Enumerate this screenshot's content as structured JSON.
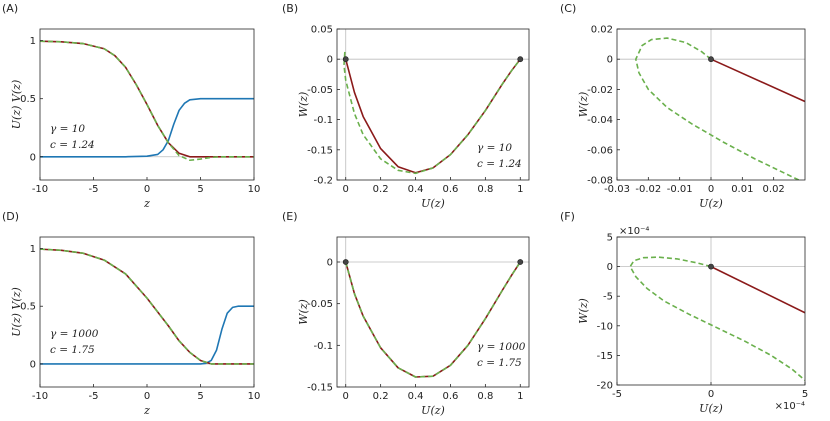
{
  "chart_data": [
    {
      "panel": "(A)",
      "type": "line",
      "xlabel": "z",
      "ylabel": "U(z)   V(z)",
      "xlim": [
        -10,
        10
      ],
      "ylim": [
        -0.2,
        1.1
      ],
      "xticks": [
        -10,
        -5,
        0,
        5,
        10
      ],
      "xtick_labels": [
        "-10",
        "-5",
        "0",
        "5",
        "10"
      ],
      "yticks": [
        0,
        0.5,
        1
      ],
      "ytick_labels": [
        "0",
        "0.5",
        "1"
      ],
      "annotations": [
        "γ = 10",
        "c = 1.24"
      ],
      "series": [
        {
          "color": "#1f77b4",
          "dash": false,
          "x": [
            -10,
            -5,
            -2,
            0,
            1,
            1.5,
            2,
            2.5,
            3,
            3.5,
            4,
            5,
            6,
            10
          ],
          "y": [
            0,
            0,
            0,
            0.005,
            0.02,
            0.06,
            0.14,
            0.28,
            0.4,
            0.46,
            0.49,
            0.5,
            0.5,
            0.5
          ]
        },
        {
          "color": "#8b1a1a",
          "dash": false,
          "x": [
            -10,
            -8,
            -6,
            -4,
            -3,
            -2,
            -1,
            0,
            1,
            2,
            3,
            4,
            5,
            6,
            10
          ],
          "y": [
            0.995,
            0.99,
            0.975,
            0.93,
            0.87,
            0.77,
            0.62,
            0.45,
            0.27,
            0.12,
            0.03,
            0.0,
            0.0,
            0.0,
            0.0
          ]
        },
        {
          "color": "#6ab04c",
          "dash": true,
          "x": [
            -10,
            -8,
            -6,
            -4,
            -3,
            -2,
            -1,
            0,
            1,
            2,
            3,
            4,
            5,
            6,
            7,
            10
          ],
          "y": [
            0.995,
            0.99,
            0.975,
            0.93,
            0.87,
            0.77,
            0.62,
            0.45,
            0.27,
            0.12,
            0.01,
            -0.03,
            -0.02,
            -0.005,
            0.0,
            0.0
          ]
        }
      ]
    },
    {
      "panel": "(B)",
      "type": "line",
      "xlabel": "U(z)",
      "ylabel": "W(z)",
      "xlim": [
        -0.05,
        1.05
      ],
      "ylim": [
        -0.2,
        0.05
      ],
      "xticks": [
        0,
        0.2,
        0.4,
        0.6,
        0.8,
        1
      ],
      "xtick_labels": [
        "0",
        "0.2",
        "0.4",
        "0.6",
        "0.8",
        "1"
      ],
      "yticks": [
        0.05,
        0,
        -0.05,
        -0.1,
        -0.15,
        -0.2
      ],
      "ytick_labels": [
        "0.05",
        "0",
        "-0.05",
        "-0.1",
        "-0.15",
        "-0.2"
      ],
      "annotations": [
        "γ = 10",
        "c = 1.24"
      ],
      "points": [
        [
          0,
          0
        ],
        [
          1,
          0
        ]
      ],
      "series": [
        {
          "color": "#8b1a1a",
          "dash": false,
          "x": [
            0,
            0.05,
            0.1,
            0.2,
            0.3,
            0.4,
            0.5,
            0.6,
            0.7,
            0.8,
            0.9,
            0.95,
            1
          ],
          "y": [
            0,
            -0.055,
            -0.095,
            -0.148,
            -0.178,
            -0.188,
            -0.18,
            -0.158,
            -0.125,
            -0.085,
            -0.04,
            -0.019,
            0
          ]
        },
        {
          "color": "#6ab04c",
          "dash": true,
          "x": [
            -0.005,
            -0.01,
            0,
            0.05,
            0.1,
            0.2,
            0.3,
            0.4,
            0.5,
            0.6,
            0.7,
            0.8,
            0.9,
            0.95,
            1
          ],
          "y": [
            0.012,
            -0.01,
            -0.035,
            -0.09,
            -0.125,
            -0.165,
            -0.184,
            -0.189,
            -0.18,
            -0.158,
            -0.125,
            -0.085,
            -0.04,
            -0.019,
            0
          ]
        }
      ]
    },
    {
      "panel": "(C)",
      "type": "line",
      "xlabel": "U(z)",
      "ylabel": "W(z)",
      "xlim": [
        -0.03,
        0.03
      ],
      "ylim": [
        -0.08,
        0.02
      ],
      "xticks": [
        -0.03,
        -0.02,
        -0.01,
        0,
        0.01,
        0.02
      ],
      "xtick_labels": [
        "-0.03",
        "-0.02",
        "-0.01",
        "0",
        "0.01",
        "0.02"
      ],
      "yticks": [
        0.02,
        0,
        -0.02,
        -0.04,
        -0.06,
        -0.08
      ],
      "ytick_labels": [
        "0.02",
        "0",
        "-0.02",
        "-0.04",
        "-0.06",
        "-0.08"
      ],
      "annotations": [],
      "points": [
        [
          0,
          0
        ]
      ],
      "series": [
        {
          "color": "#8b1a1a",
          "dash": false,
          "x": [
            0,
            0.03
          ],
          "y": [
            0,
            -0.028
          ]
        },
        {
          "color": "#6ab04c",
          "dash": true,
          "x": [
            0,
            -0.003,
            -0.008,
            -0.014,
            -0.019,
            -0.022,
            -0.024,
            -0.023,
            -0.02,
            -0.014,
            -0.006,
            0.004,
            0.014,
            0.022,
            0.03
          ],
          "y": [
            0,
            0.005,
            0.011,
            0.014,
            0.013,
            0.009,
            0.0,
            -0.009,
            -0.02,
            -0.032,
            -0.043,
            -0.055,
            -0.066,
            -0.074,
            -0.082
          ]
        }
      ]
    },
    {
      "panel": "(D)",
      "type": "line",
      "xlabel": "z",
      "ylabel": "U(z)   V(z)",
      "xlim": [
        -10,
        10
      ],
      "ylim": [
        -0.2,
        1.1
      ],
      "xticks": [
        -10,
        -5,
        0,
        5,
        10
      ],
      "xtick_labels": [
        "-10",
        "-5",
        "0",
        "5",
        "10"
      ],
      "yticks": [
        0,
        0.5,
        1
      ],
      "ytick_labels": [
        "0",
        "0.5",
        "1"
      ],
      "annotations": [
        "γ = 1000",
        "c = 1.75"
      ],
      "series": [
        {
          "color": "#1f77b4",
          "dash": false,
          "x": [
            -10,
            0,
            5,
            5.5,
            6,
            6.5,
            7,
            7.5,
            8,
            8.5,
            9,
            10
          ],
          "y": [
            0,
            0,
            0,
            0.005,
            0.03,
            0.12,
            0.3,
            0.44,
            0.49,
            0.5,
            0.5,
            0.5
          ]
        },
        {
          "color": "#8b1a1a",
          "dash": false,
          "x": [
            -10,
            -8,
            -6,
            -4,
            -2,
            0,
            1,
            2,
            3,
            4,
            5,
            6,
            7,
            10
          ],
          "y": [
            0.995,
            0.985,
            0.96,
            0.9,
            0.78,
            0.57,
            0.45,
            0.33,
            0.2,
            0.1,
            0.03,
            0.0,
            0.0,
            0.0
          ]
        },
        {
          "color": "#6ab04c",
          "dash": true,
          "x": [
            -10,
            -8,
            -6,
            -4,
            -2,
            0,
            1,
            2,
            3,
            4,
            5,
            6,
            7,
            10
          ],
          "y": [
            0.995,
            0.985,
            0.96,
            0.9,
            0.78,
            0.57,
            0.45,
            0.33,
            0.2,
            0.1,
            0.03,
            0.0,
            0.0,
            0.0
          ]
        }
      ]
    },
    {
      "panel": "(E)",
      "type": "line",
      "xlabel": "U(z)",
      "ylabel": "W(z)",
      "xlim": [
        -0.05,
        1.05
      ],
      "ylim": [
        -0.15,
        0.03
      ],
      "xticks": [
        0,
        0.2,
        0.4,
        0.6,
        0.8,
        1
      ],
      "xtick_labels": [
        "0",
        "0.2",
        "0.4",
        "0.6",
        "0.8",
        "1"
      ],
      "yticks": [
        0,
        -0.05,
        -0.1,
        -0.15
      ],
      "ytick_labels": [
        "0",
        "-0.05",
        "-0.1",
        "-0.15"
      ],
      "annotations": [
        "γ = 1000",
        "c = 1.75"
      ],
      "points": [
        [
          0,
          0
        ],
        [
          1,
          0
        ]
      ],
      "series": [
        {
          "color": "#8b1a1a",
          "dash": false,
          "x": [
            0,
            0.05,
            0.1,
            0.2,
            0.3,
            0.4,
            0.5,
            0.6,
            0.7,
            0.8,
            0.9,
            0.95,
            1
          ],
          "y": [
            0,
            -0.038,
            -0.065,
            -0.103,
            -0.127,
            -0.138,
            -0.137,
            -0.124,
            -0.1,
            -0.068,
            -0.033,
            -0.016,
            0
          ]
        },
        {
          "color": "#6ab04c",
          "dash": true,
          "x": [
            0,
            0.05,
            0.1,
            0.2,
            0.3,
            0.4,
            0.5,
            0.6,
            0.7,
            0.8,
            0.9,
            0.95,
            1
          ],
          "y": [
            0,
            -0.038,
            -0.065,
            -0.103,
            -0.127,
            -0.138,
            -0.137,
            -0.124,
            -0.1,
            -0.068,
            -0.033,
            -0.016,
            0
          ]
        }
      ]
    },
    {
      "panel": "(F)",
      "type": "line",
      "xlabel": "U(z)",
      "ylabel": "W(z)",
      "xlim": [
        -5,
        5
      ],
      "ylim": [
        -20,
        5
      ],
      "x_exponent": "×10⁻⁴",
      "y_exponent": "×10⁻⁴",
      "xticks": [
        -5,
        0,
        5
      ],
      "xtick_labels": [
        "-5",
        "0",
        "5"
      ],
      "yticks": [
        5,
        0,
        -5,
        -10,
        -15,
        -20
      ],
      "ytick_labels": [
        "5",
        "0",
        "-5",
        "-10",
        "-15",
        "-20"
      ],
      "annotations": [],
      "points": [
        [
          0,
          0
        ]
      ],
      "series": [
        {
          "color": "#8b1a1a",
          "dash": false,
          "x": [
            0,
            5
          ],
          "y": [
            0,
            -7.8
          ]
        },
        {
          "color": "#6ab04c",
          "dash": true,
          "x": [
            0,
            -0.7,
            -1.8,
            -2.8,
            -3.6,
            -4.1,
            -4.3,
            -4.0,
            -3.4,
            -2.5,
            -1.2,
            0.3,
            1.8,
            3.2,
            4.3,
            5.0
          ],
          "y": [
            0,
            0.6,
            1.3,
            1.6,
            1.5,
            1.0,
            0.0,
            -1.7,
            -3.7,
            -5.8,
            -8.0,
            -10.3,
            -12.6,
            -15.0,
            -17.3,
            -19.2
          ]
        }
      ]
    }
  ]
}
